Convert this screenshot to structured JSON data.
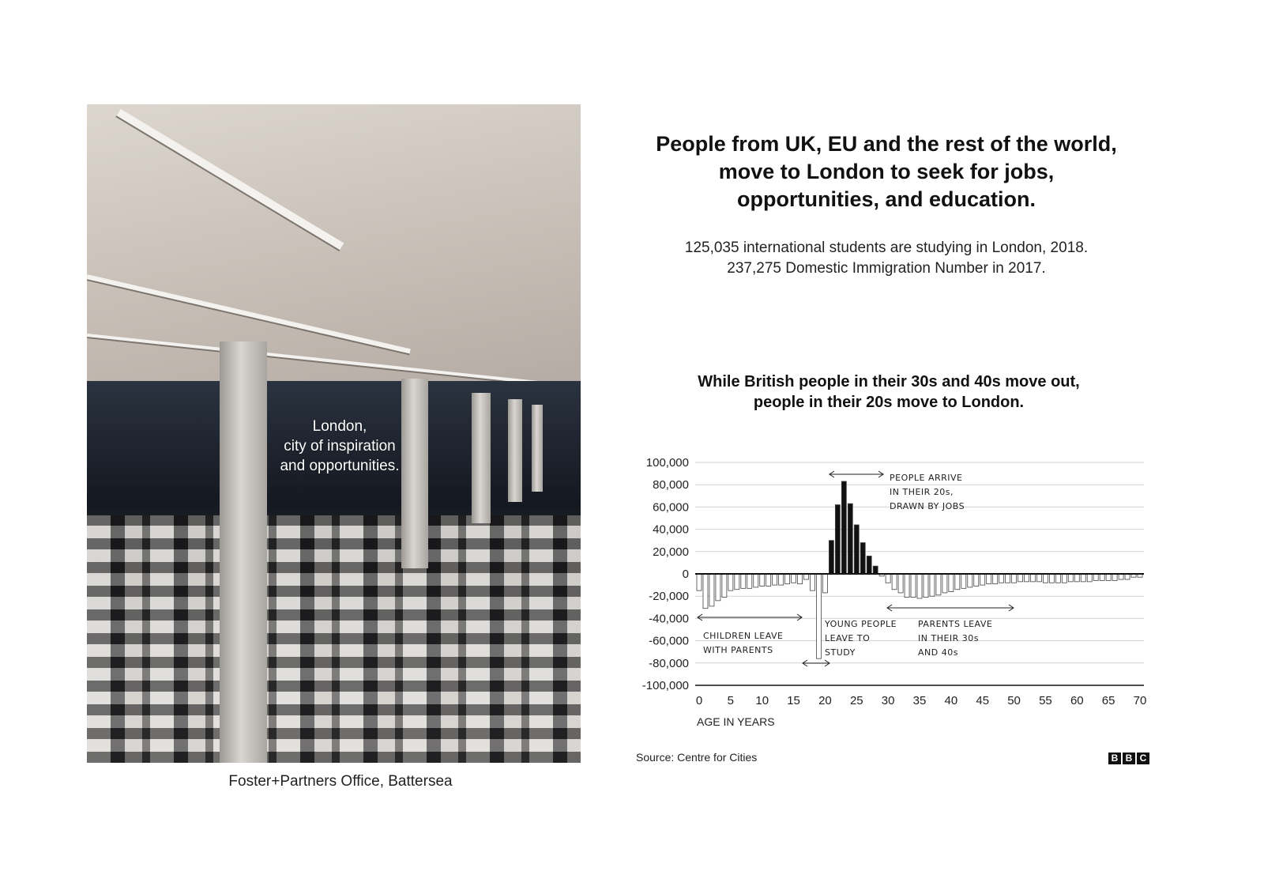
{
  "photo": {
    "overlay_lines": [
      "London,",
      "city of inspiration",
      "and opportunities."
    ],
    "caption": "Foster+Partners Office, Battersea"
  },
  "headline": {
    "lines": [
      "People from UK, EU and the rest of the world,",
      "move to London to seek for jobs,",
      "opportunities, and education."
    ]
  },
  "stats": {
    "line1": "125,035 international students are studying in London, 2018.",
    "line2": "237,275 Domestic Immigration Number in 2017."
  },
  "chart_heading": {
    "lines": [
      "While British people in their 30s and 40s move out,",
      "people in their 20s move to London."
    ]
  },
  "source": "Source: Centre for Cities",
  "logo": {
    "letters": [
      "B",
      "B",
      "C"
    ]
  },
  "chart_data": {
    "type": "bar",
    "title": "",
    "xlabel": "AGE IN YEARS",
    "ylabel": "",
    "xlim": [
      0,
      70
    ],
    "ylim": [
      -100000,
      100000
    ],
    "grid": true,
    "x_ticks": [
      "0",
      "5",
      "10",
      "15",
      "20",
      "25",
      "30",
      "35",
      "40",
      "45",
      "50",
      "55",
      "60",
      "65",
      "70"
    ],
    "y_ticks": [
      "100,000",
      "80,000",
      "60,000",
      "40,000",
      "20,000",
      "0",
      "-20,000",
      "-40,000",
      "-60,000",
      "-80,000",
      "-100,000"
    ],
    "x": [
      0,
      1,
      2,
      3,
      4,
      5,
      6,
      7,
      8,
      9,
      10,
      11,
      12,
      13,
      14,
      15,
      16,
      17,
      18,
      19,
      20,
      21,
      22,
      23,
      24,
      25,
      26,
      27,
      28,
      29,
      30,
      31,
      32,
      33,
      34,
      35,
      36,
      37,
      38,
      39,
      40,
      41,
      42,
      43,
      44,
      45,
      46,
      47,
      48,
      49,
      50,
      51,
      52,
      53,
      54,
      55,
      56,
      57,
      58,
      59,
      60,
      61,
      62,
      63,
      64,
      65,
      66,
      67,
      68,
      69,
      70
    ],
    "values": [
      -15000,
      -31000,
      -29000,
      -24000,
      -21000,
      -15000,
      -14000,
      -13000,
      -13000,
      -12000,
      -11000,
      -11000,
      -10000,
      -10000,
      -9000,
      -8000,
      -9000,
      -5000,
      -15000,
      -76000,
      -17000,
      30000,
      62000,
      83000,
      63000,
      44000,
      28000,
      16000,
      7000,
      -2000,
      -8000,
      -14000,
      -17000,
      -21000,
      -21000,
      -22000,
      -21000,
      -20000,
      -19000,
      -17000,
      -16000,
      -14000,
      -13000,
      -12000,
      -11000,
      -10000,
      -9000,
      -9000,
      -8000,
      -8000,
      -8000,
      -7000,
      -7000,
      -7000,
      -7000,
      -8000,
      -8000,
      -8000,
      -8000,
      -7000,
      -7000,
      -7000,
      -7000,
      -6000,
      -6000,
      -6000,
      -6000,
      -5000,
      -5000,
      -3000,
      -3000
    ],
    "colors": {
      "positive": "#111111",
      "negative": "#ffffff"
    },
    "annotations": {
      "arrive": [
        "PEOPLE ARRIVE",
        "IN THEIR 20s,",
        "DRAWN BY JOBS"
      ],
      "children": [
        "CHILDREN LEAVE",
        "WITH PARENTS"
      ],
      "young": [
        "YOUNG PEOPLE",
        "LEAVE TO",
        "STUDY"
      ],
      "parents": [
        "PARENTS LEAVE",
        "IN THEIR 30s",
        "AND 40s"
      ]
    }
  }
}
